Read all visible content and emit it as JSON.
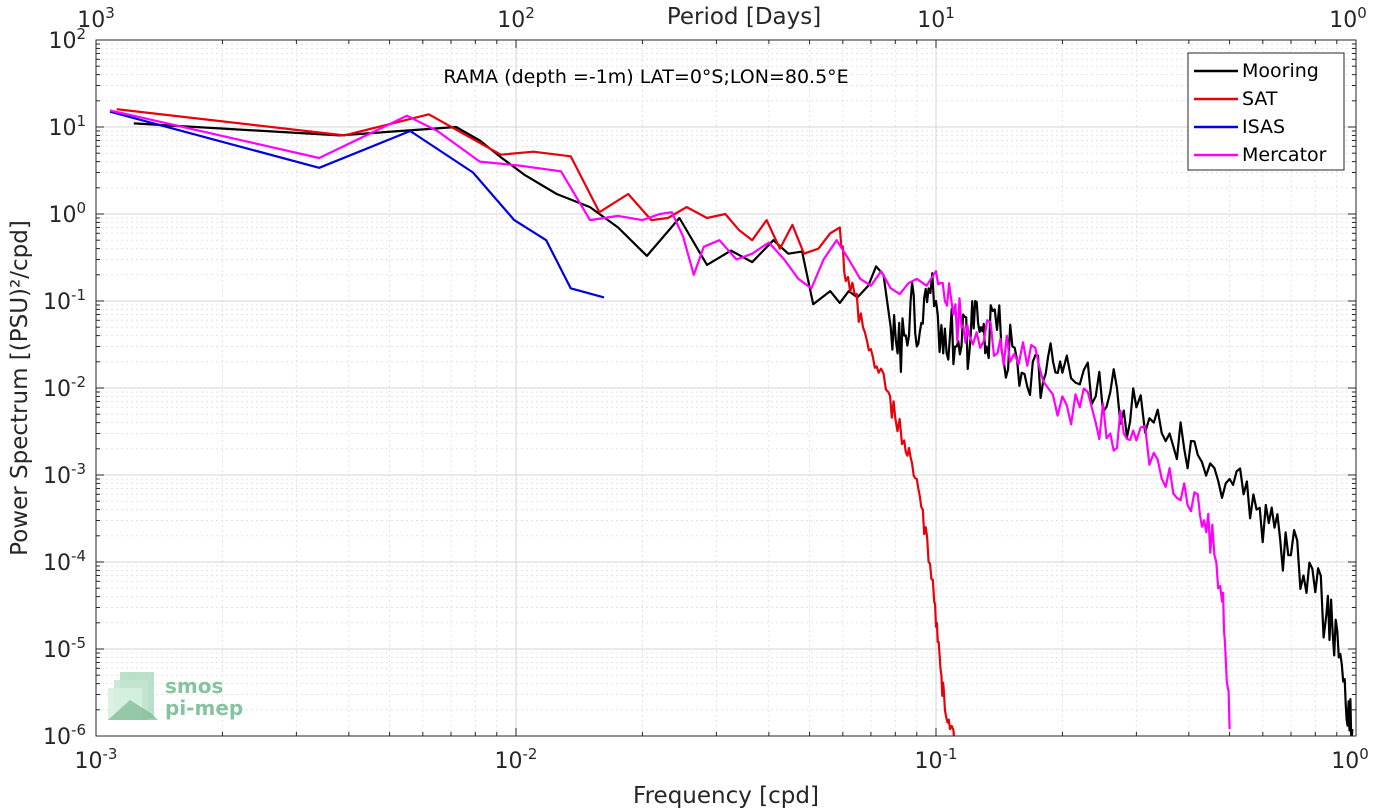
{
  "chart_data": {
    "type": "line",
    "title": "RAMA (depth =-1m) LAT=0°S;LON=80.5°E",
    "xlabel": "Frequency [cpd]",
    "ylabel": "Power Spectrum [(PSU)²/cpd]",
    "top_xlabel": "Period [Days]",
    "x_scale": "log",
    "y_scale": "log",
    "xlim": [
      0.001,
      1
    ],
    "ylim": [
      1e-06,
      100
    ],
    "grid": true,
    "legend_position": "top-right",
    "x_ticks": [
      {
        "value": 0.001,
        "base": "10",
        "exp": "-3"
      },
      {
        "value": 0.01,
        "base": "10",
        "exp": "-2"
      },
      {
        "value": 0.1,
        "base": "10",
        "exp": "-1"
      },
      {
        "value": 1,
        "base": "10",
        "exp": "0"
      }
    ],
    "top_ticks": [
      {
        "value": 0.001,
        "base": "10",
        "exp": "3"
      },
      {
        "value": 0.01,
        "base": "10",
        "exp": "2"
      },
      {
        "value": 0.1,
        "base": "10",
        "exp": "1"
      },
      {
        "value": 1,
        "base": "10",
        "exp": "0"
      }
    ],
    "y_ticks": [
      {
        "value": 100,
        "base": "10",
        "exp": "2"
      },
      {
        "value": 10,
        "base": "10",
        "exp": "1"
      },
      {
        "value": 1,
        "base": "10",
        "exp": "0"
      },
      {
        "value": 0.1,
        "base": "10",
        "exp": "-1"
      },
      {
        "value": 0.01,
        "base": "10",
        "exp": "-2"
      },
      {
        "value": 0.001,
        "base": "10",
        "exp": "-3"
      },
      {
        "value": 0.0001,
        "base": "10",
        "exp": "-4"
      },
      {
        "value": 1e-05,
        "base": "10",
        "exp": "-5"
      },
      {
        "value": 1e-06,
        "base": "10",
        "exp": "-6"
      }
    ],
    "series": [
      {
        "name": "Mooring",
        "color": "#000000",
        "points": [
          [
            0.00123,
            11
          ],
          [
            0.0038,
            8
          ],
          [
            0.0072,
            10
          ],
          [
            0.0082,
            7
          ],
          [
            0.0092,
            4.5
          ],
          [
            0.0105,
            2.8
          ],
          [
            0.0125,
            1.7
          ],
          [
            0.015,
            1.2
          ],
          [
            0.0175,
            0.7
          ],
          [
            0.0205,
            0.33
          ],
          [
            0.0245,
            0.9
          ],
          [
            0.0285,
            0.26
          ],
          [
            0.0325,
            0.38
          ],
          [
            0.0365,
            0.28
          ],
          [
            0.041,
            0.5
          ],
          [
            0.0445,
            0.35
          ],
          [
            0.048,
            0.37
          ],
          [
            0.051,
            0.092
          ],
          [
            0.056,
            0.13
          ],
          [
            0.059,
            0.095
          ],
          [
            0.062,
            0.13
          ],
          [
            0.065,
            0.11
          ],
          [
            0.069,
            0.15
          ],
          [
            0.072,
            0.25
          ],
          [
            0.075,
            0.2
          ],
          [
            0.078,
            0.05
          ],
          [
            0.081,
            0.025
          ],
          [
            0.084,
            0.04
          ],
          [
            0.087,
            0.1
          ],
          [
            0.09,
            0.03
          ],
          [
            0.093,
            0.055
          ],
          [
            0.096,
            0.14
          ],
          [
            0.1,
            0.1
          ],
          [
            0.104,
            0.025
          ],
          [
            0.108,
            0.04
          ],
          [
            0.112,
            0.03
          ],
          [
            0.116,
            0.07
          ],
          [
            0.12,
            0.025
          ],
          [
            0.124,
            0.1
          ],
          [
            0.128,
            0.05
          ],
          [
            0.132,
            0.03
          ],
          [
            0.138,
            0.08
          ],
          [
            0.145,
            0.02
          ],
          [
            0.152,
            0.03
          ],
          [
            0.16,
            0.015
          ],
          [
            0.17,
            0.02
          ],
          [
            0.18,
            0.012
          ],
          [
            0.19,
            0.02
          ],
          [
            0.2,
            0.015
          ],
          [
            0.22,
            0.011
          ],
          [
            0.24,
            0.008
          ],
          [
            0.26,
            0.009
          ],
          [
            0.28,
            0.0055
          ],
          [
            0.3,
            0.006
          ],
          [
            0.33,
            0.004
          ],
          [
            0.36,
            0.003
          ],
          [
            0.39,
            0.002
          ],
          [
            0.42,
            0.0017
          ],
          [
            0.46,
            0.0012
          ],
          [
            0.5,
            0.0009
          ],
          [
            0.54,
            0.0006
          ],
          [
            0.58,
            0.0004
          ],
          [
            0.62,
            0.00028
          ],
          [
            0.66,
            0.00018
          ],
          [
            0.7,
            0.00012
          ],
          [
            0.75,
            7e-05
          ],
          [
            0.8,
            4.5e-05
          ],
          [
            0.85,
            2.5e-05
          ],
          [
            0.88,
            1.5e-05
          ],
          [
            0.91,
            8e-06
          ],
          [
            0.94,
            4.5e-06
          ],
          [
            0.96,
            2.5e-06
          ],
          [
            0.98,
            1.2e-06
          ]
        ],
        "noise": 0.35,
        "noise_from": 0.08
      },
      {
        "name": "SAT",
        "color": "#e8000b",
        "points": [
          [
            0.00112,
            16
          ],
          [
            0.0039,
            8
          ],
          [
            0.0062,
            14
          ],
          [
            0.0092,
            4.8
          ],
          [
            0.011,
            5.2
          ],
          [
            0.0135,
            4.6
          ],
          [
            0.0158,
            1.05
          ],
          [
            0.0185,
            1.7
          ],
          [
            0.021,
            0.85
          ],
          [
            0.023,
            0.9
          ],
          [
            0.0255,
            1.2
          ],
          [
            0.0285,
            0.9
          ],
          [
            0.0315,
            1.0
          ],
          [
            0.034,
            0.65
          ],
          [
            0.0365,
            0.5
          ],
          [
            0.0395,
            0.85
          ],
          [
            0.0425,
            0.4
          ],
          [
            0.0455,
            0.75
          ],
          [
            0.0485,
            0.35
          ],
          [
            0.0525,
            0.4
          ],
          [
            0.056,
            0.6
          ],
          [
            0.059,
            0.7
          ],
          [
            0.061,
            0.17
          ],
          [
            0.064,
            0.12
          ],
          [
            0.067,
            0.05
          ],
          [
            0.07,
            0.028
          ],
          [
            0.073,
            0.015
          ],
          [
            0.077,
            0.009
          ],
          [
            0.08,
            0.0045
          ],
          [
            0.084,
            0.0025
          ],
          [
            0.087,
            0.0016
          ],
          [
            0.09,
            0.0009
          ],
          [
            0.093,
            0.0004
          ],
          [
            0.096,
            0.0001
          ],
          [
            0.099,
            3.5e-05
          ],
          [
            0.101,
            1.2e-05
          ],
          [
            0.103,
            5e-06
          ],
          [
            0.105,
            2e-06
          ],
          [
            0.108,
            1.2e-06
          ],
          [
            0.112,
            7e-07
          ]
        ],
        "noise": 0.15,
        "noise_from": 0.06
      },
      {
        "name": "ISAS",
        "color": "#0000e0",
        "points": [
          [
            0.00108,
            15
          ],
          [
            0.0034,
            3.4
          ],
          [
            0.0056,
            9
          ],
          [
            0.0079,
            3.0
          ],
          [
            0.0099,
            0.85
          ],
          [
            0.0118,
            0.5
          ],
          [
            0.0135,
            0.14
          ],
          [
            0.0162,
            0.11
          ]
        ],
        "noise": 0,
        "noise_from": 1
      },
      {
        "name": "Mercator",
        "color": "#ff00ff",
        "points": [
          [
            0.00108,
            15.5
          ],
          [
            0.0034,
            4.4
          ],
          [
            0.0055,
            13.5
          ],
          [
            0.0065,
            9
          ],
          [
            0.0082,
            4.0
          ],
          [
            0.0102,
            3.6
          ],
          [
            0.0128,
            3.1
          ],
          [
            0.015,
            0.85
          ],
          [
            0.0175,
            0.95
          ],
          [
            0.02,
            0.85
          ],
          [
            0.022,
            1.0
          ],
          [
            0.0235,
            1.05
          ],
          [
            0.025,
            0.55
          ],
          [
            0.0265,
            0.2
          ],
          [
            0.028,
            0.42
          ],
          [
            0.0305,
            0.5
          ],
          [
            0.0335,
            0.3
          ],
          [
            0.0365,
            0.35
          ],
          [
            0.04,
            0.47
          ],
          [
            0.0435,
            0.3
          ],
          [
            0.047,
            0.18
          ],
          [
            0.0505,
            0.14
          ],
          [
            0.054,
            0.3
          ],
          [
            0.058,
            0.5
          ],
          [
            0.062,
            0.3
          ],
          [
            0.066,
            0.18
          ],
          [
            0.07,
            0.15
          ],
          [
            0.074,
            0.22
          ],
          [
            0.078,
            0.14
          ],
          [
            0.082,
            0.12
          ],
          [
            0.086,
            0.16
          ],
          [
            0.09,
            0.18
          ],
          [
            0.095,
            0.15
          ],
          [
            0.1,
            0.22
          ],
          [
            0.105,
            0.1
          ],
          [
            0.11,
            0.07
          ],
          [
            0.115,
            0.05
          ],
          [
            0.12,
            0.04
          ],
          [
            0.13,
            0.035
          ],
          [
            0.14,
            0.025
          ],
          [
            0.15,
            0.02
          ],
          [
            0.165,
            0.018
          ],
          [
            0.18,
            0.012
          ],
          [
            0.2,
            0.008
          ],
          [
            0.22,
            0.006
          ],
          [
            0.24,
            0.004
          ],
          [
            0.26,
            0.003
          ],
          [
            0.28,
            0.003
          ],
          [
            0.3,
            0.0025
          ],
          [
            0.33,
            0.0018
          ],
          [
            0.36,
            0.0012
          ],
          [
            0.39,
            0.0008
          ],
          [
            0.42,
            0.0006
          ],
          [
            0.44,
            0.00022
          ],
          [
            0.46,
            0.00012
          ],
          [
            0.48,
            3.5e-05
          ],
          [
            0.49,
            7e-06
          ],
          [
            0.5,
            1.2e-06
          ]
        ],
        "noise": 0.3,
        "noise_from": 0.1
      }
    ]
  },
  "logo": {
    "line1": "smos",
    "line2": "pi-mep"
  }
}
